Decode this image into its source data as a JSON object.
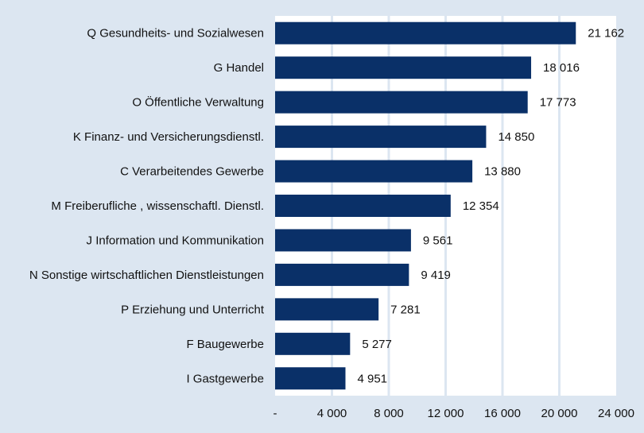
{
  "chart_data": {
    "type": "bar",
    "orientation": "horizontal",
    "categories": [
      "Q Gesundheits- und Sozialwesen",
      "G Handel",
      "O Öffentliche Verwaltung",
      "K Finanz- und Versicherungsdienstl.",
      "C Verarbeitendes Gewerbe",
      "M Freiberufliche , wissenschaftl. Dienstl.",
      "J Information und Kommunikation",
      "N Sonstige wirtschaftlichen Dienstleistungen",
      "P Erziehung und Unterricht",
      "F Baugewerbe",
      "I Gastgewerbe"
    ],
    "values": [
      21162,
      18016,
      17773,
      14850,
      13880,
      12354,
      9561,
      9419,
      7281,
      5277,
      4951
    ],
    "value_labels": [
      "21 162",
      "18 016",
      "17 773",
      "14 850",
      "13 880",
      "12 354",
      "9 561",
      "9 419",
      "7 281",
      "5 277",
      "4 951"
    ],
    "xlim": [
      0,
      24000
    ],
    "xticks": [
      0,
      4000,
      8000,
      12000,
      16000,
      20000,
      24000
    ],
    "xtick_labels": [
      "-",
      "4 000",
      "8 000",
      "12 000",
      "16 000",
      "20 000",
      "24 000"
    ],
    "grid": "vertical",
    "colors": {
      "bar": "#0a3068",
      "background": "#dce6f1",
      "plot": "#ffffff",
      "grid": "#dce6f1"
    }
  }
}
